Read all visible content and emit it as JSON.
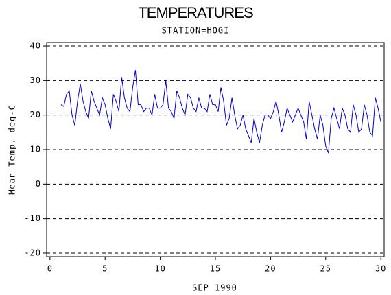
{
  "chart_data": {
    "type": "line",
    "title": "TEMPERATURES",
    "subtitle": "STATION=HOGI",
    "x_label": "SEP 1990",
    "y_label": "Mean Temp. deg-C",
    "xlim": [
      -0.3,
      30.3
    ],
    "ylim": [
      -21,
      41
    ],
    "xticks": [
      0,
      5,
      10,
      15,
      20,
      25,
      30
    ],
    "yticks": [
      -20,
      -10,
      0,
      10,
      20,
      30,
      40
    ],
    "grid": true,
    "x": [
      1,
      1.25,
      1.5,
      1.75,
      2,
      2.25,
      2.5,
      2.75,
      3,
      3.25,
      3.5,
      3.75,
      4,
      4.25,
      4.5,
      4.75,
      5,
      5.25,
      5.5,
      5.75,
      6,
      6.25,
      6.5,
      6.75,
      7,
      7.25,
      7.5,
      7.75,
      8,
      8.25,
      8.5,
      8.75,
      9,
      9.25,
      9.5,
      9.75,
      10,
      10.25,
      10.5,
      10.75,
      11,
      11.25,
      11.5,
      11.75,
      12,
      12.25,
      12.5,
      12.75,
      13,
      13.25,
      13.5,
      13.75,
      14,
      14.25,
      14.5,
      14.75,
      15,
      15.25,
      15.5,
      15.75,
      16,
      16.25,
      16.5,
      16.75,
      17,
      17.25,
      17.5,
      17.75,
      18,
      18.25,
      18.5,
      18.75,
      19,
      19.25,
      19.5,
      19.75,
      20,
      20.25,
      20.5,
      20.75,
      21,
      21.25,
      21.5,
      21.75,
      22,
      22.25,
      22.5,
      22.75,
      23,
      23.25,
      23.5,
      23.75,
      24,
      24.25,
      24.5,
      24.75,
      25,
      25.25,
      25.5,
      25.75,
      26,
      26.25,
      26.5,
      26.75,
      27,
      27.25,
      27.5,
      27.75,
      28,
      28.25,
      28.5,
      28.75,
      29,
      29.25,
      29.5,
      29.75,
      30
    ],
    "series": [
      {
        "name": "Mean Temp.",
        "color": "#0000cc",
        "values": [
          23,
          22.5,
          26,
          27,
          20,
          17,
          24,
          29,
          24,
          21,
          19,
          27,
          24,
          22,
          20,
          25,
          23,
          19,
          16,
          26,
          24,
          21,
          31,
          25,
          22,
          21,
          28,
          33,
          23,
          23,
          21,
          22,
          22,
          20,
          26,
          22,
          22,
          23,
          30,
          22,
          21,
          19,
          27,
          25,
          22,
          20,
          26,
          25,
          22,
          21,
          25,
          22,
          22,
          21,
          26,
          23,
          23,
          21,
          28,
          24,
          17,
          19,
          25,
          20,
          16,
          17,
          20,
          16,
          14,
          12,
          19,
          15,
          12,
          17,
          20,
          20,
          19,
          21,
          24,
          20,
          15,
          18,
          22,
          20,
          18,
          20,
          22,
          20,
          18,
          13,
          24,
          20,
          16,
          13,
          20,
          17,
          11,
          9,
          19,
          22,
          19,
          16,
          22,
          20,
          16,
          15,
          23,
          20,
          15,
          16,
          23,
          20,
          15,
          14,
          25,
          22,
          18
        ]
      }
    ]
  }
}
